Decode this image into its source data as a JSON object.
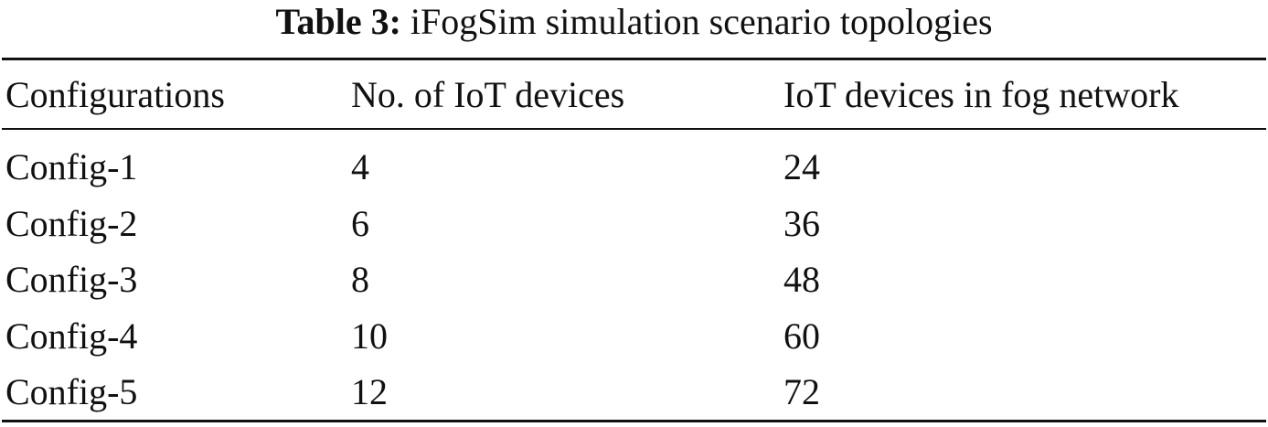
{
  "caption": {
    "label": "Table 3:",
    "text": "iFogSim simulation scenario topologies"
  },
  "table": {
    "headers": [
      "Configurations",
      "No. of IoT devices",
      "IoT devices in fog network"
    ],
    "rows": [
      [
        "Config-1",
        "4",
        "24"
      ],
      [
        "Config-2",
        "6",
        "36"
      ],
      [
        "Config-3",
        "8",
        "48"
      ],
      [
        "Config-4",
        "10",
        "60"
      ],
      [
        "Config-5",
        "12",
        "72"
      ]
    ]
  }
}
